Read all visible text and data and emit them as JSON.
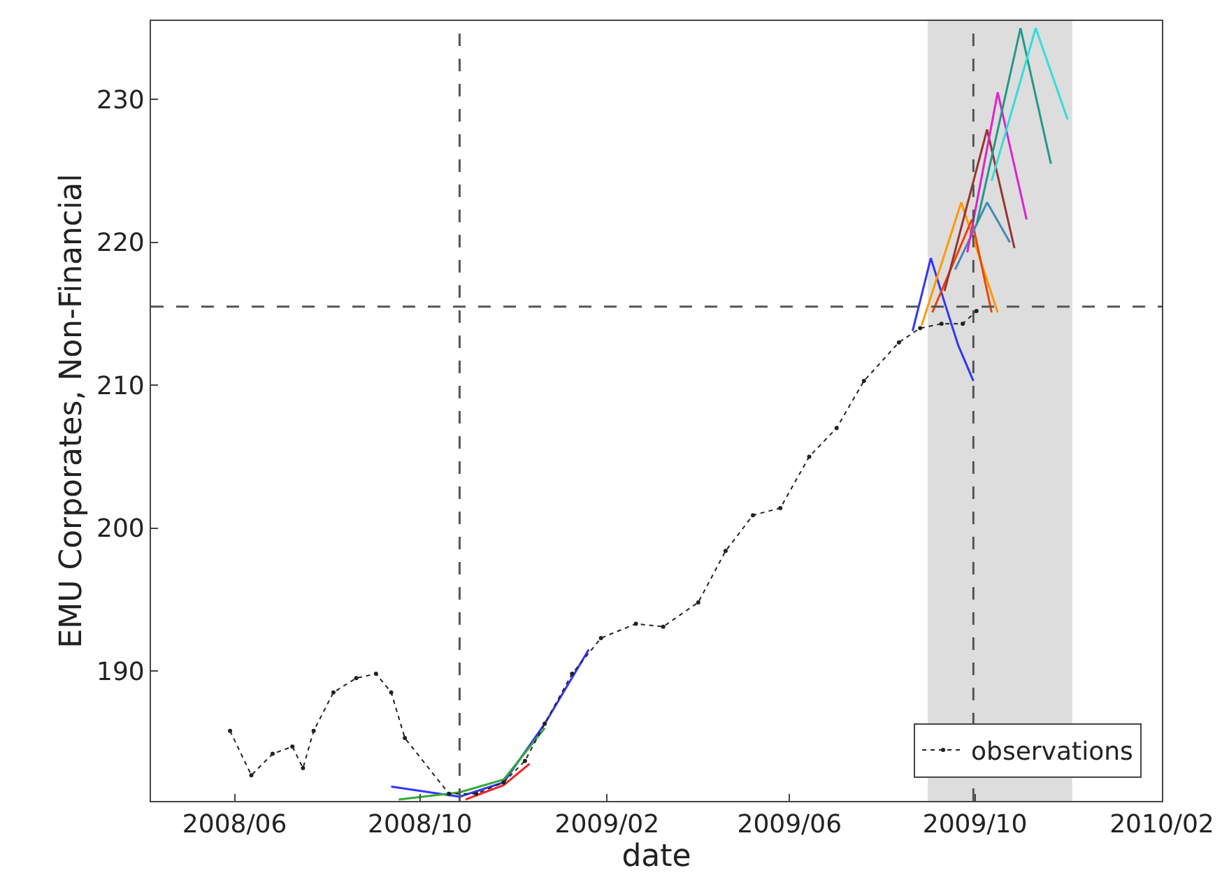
{
  "chart_data": {
    "type": "line",
    "xlabel": "date",
    "ylabel": "EMU Corporates, Non-Financial",
    "xlim": [
      "2008-04-07",
      "2010-02-01"
    ],
    "ylim": [
      180.9,
      235.5
    ],
    "xticks": [
      {
        "value": "2008-06-01",
        "label": "2008/06"
      },
      {
        "value": "2008-10-01",
        "label": "2008/10"
      },
      {
        "value": "2009-02-01",
        "label": "2009/02"
      },
      {
        "value": "2009-06-01",
        "label": "2009/06"
      },
      {
        "value": "2009-10-01",
        "label": "2009/10"
      },
      {
        "value": "2010-02-01",
        "label": "2010/02"
      }
    ],
    "yticks": [
      190,
      200,
      210,
      220,
      230
    ],
    "grid": false,
    "legend": "bottom right",
    "ref_lines": [
      {
        "axis": "x",
        "value": "2008-10-27",
        "color": "#555555",
        "line_style": "dashed"
      },
      {
        "axis": "x",
        "value": "2009-09-30",
        "color": "#555555",
        "line_style": "dashed"
      },
      {
        "axis": "y",
        "value": 215.5,
        "color": "#555555",
        "line_style": "dashed"
      }
    ],
    "bands": [
      {
        "axis": "x",
        "from": "2009-08-31",
        "to": "2009-12-04",
        "color": "#d4d4d4"
      }
    ],
    "series": [
      {
        "name": "observations",
        "color": "#222222",
        "marker": "circle",
        "line_style": "dotted",
        "x": [
          "2008-05-29",
          "2008-06-12",
          "2008-06-26",
          "2008-07-09",
          "2008-07-16",
          "2008-07-23",
          "2008-08-05",
          "2008-08-20",
          "2008-09-02",
          "2008-09-12",
          "2008-09-21",
          "2008-10-20",
          "2008-11-07",
          "2008-11-25",
          "2008-12-09",
          "2008-12-22",
          "2009-01-09",
          "2009-01-28",
          "2009-02-20",
          "2009-03-10",
          "2009-04-02",
          "2009-04-20",
          "2009-05-08",
          "2009-05-26",
          "2009-06-14",
          "2009-07-02",
          "2009-07-20",
          "2009-08-12",
          "2009-08-26",
          "2009-09-09",
          "2009-09-23",
          "2009-10-02"
        ],
        "values": [
          185.8,
          182.7,
          184.2,
          184.7,
          183.2,
          185.8,
          188.5,
          189.5,
          189.8,
          188.5,
          185.3,
          181.4,
          181.4,
          182.2,
          183.7,
          186.3,
          189.8,
          192.3,
          193.3,
          193.1,
          194.8,
          198.4,
          200.9,
          201.4,
          205.0,
          207.0,
          210.3,
          213.0,
          214.0,
          214.3,
          214.3,
          215.2
        ]
      },
      {
        "color": "#3333ff",
        "x": [
          "2008-09-12",
          "2008-10-27",
          "2008-11-25",
          "2008-12-22",
          "2009-01-20"
        ],
        "values": [
          181.9,
          181.2,
          182.2,
          186.3,
          191.5
        ]
      },
      {
        "color": "#33aa33",
        "x": [
          "2008-09-17",
          "2008-10-27",
          "2008-11-25",
          "2008-12-22"
        ],
        "values": [
          181.0,
          181.5,
          182.4,
          186.0
        ]
      },
      {
        "color": "#ee2222",
        "x": [
          "2008-10-31",
          "2008-11-25",
          "2008-12-12"
        ],
        "values": [
          181.0,
          182.0,
          183.5
        ]
      },
      {
        "color": "#3333ff",
        "x": [
          "2009-08-21",
          "2009-09-02",
          "2009-09-11",
          "2009-09-20",
          "2009-09-30"
        ],
        "values": [
          213.8,
          218.9,
          215.8,
          212.8,
          210.3
        ]
      },
      {
        "color": "#ff9900",
        "x": [
          "2009-08-27",
          "2009-09-22",
          "2009-10-16"
        ],
        "values": [
          214.2,
          222.8,
          215.1
        ]
      },
      {
        "color": "#ee4400",
        "x": [
          "2009-09-03",
          "2009-09-29",
          "2009-10-12"
        ],
        "values": [
          215.1,
          221.6,
          215.1
        ]
      },
      {
        "color": "#993333",
        "x": [
          "2009-09-11",
          "2009-10-09",
          "2009-10-27"
        ],
        "values": [
          216.6,
          227.9,
          219.6
        ]
      },
      {
        "color": "#4488bb",
        "x": [
          "2009-09-18",
          "2009-10-09",
          "2009-10-24"
        ],
        "values": [
          218.1,
          222.8,
          220.0
        ]
      },
      {
        "color": "#dd22cc",
        "x": [
          "2009-09-26",
          "2009-10-16",
          "2009-11-04"
        ],
        "values": [
          219.3,
          230.5,
          221.6
        ]
      },
      {
        "color": "#229988",
        "x": [
          "2009-10-02",
          "2009-10-31",
          "2009-11-20"
        ],
        "values": [
          221.2,
          235.0,
          225.5
        ]
      },
      {
        "color": "#33dddd",
        "x": [
          "2009-10-12",
          "2009-11-10",
          "2009-12-01"
        ],
        "values": [
          224.3,
          235.0,
          228.6
        ]
      }
    ]
  }
}
